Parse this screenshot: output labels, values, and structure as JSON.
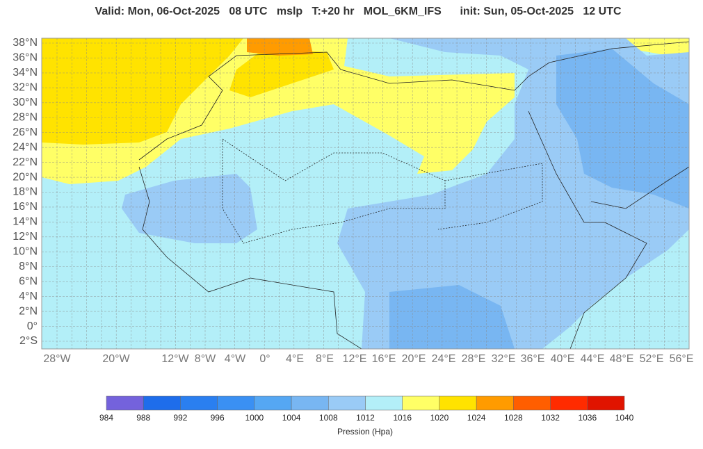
{
  "title": "Valid: Mon, 06-Oct-2025   08 UTC   mslp   T:+20 hr   MOL_6KM_IFS      init: Sun, 05-Oct-2025   12 UTC",
  "lat_labels": [
    "38°N",
    "36°N",
    "34°N",
    "32°N",
    "30°N",
    "28°N",
    "26°N",
    "24°N",
    "22°N",
    "20°N",
    "18°N",
    "16°N",
    "14°N",
    "12°N",
    "10°N",
    "8°N",
    "6°N",
    "4°N",
    "2°N",
    "0°",
    "2°S"
  ],
  "lon_labels": [
    "28°W",
    "20°W",
    "12°W",
    "8°W",
    "4°W",
    "0°",
    "4°E",
    "8°E",
    "12°E",
    "16°E",
    "20°E",
    "24°E",
    "28°E",
    "32°E",
    "36°E",
    "40°E",
    "44°E",
    "48°E",
    "52°E",
    "56°E"
  ],
  "colorbar": {
    "ticks": [
      984,
      988,
      992,
      996,
      1000,
      1004,
      1008,
      1012,
      1016,
      1020,
      1024,
      1028,
      1032,
      1036,
      1040
    ],
    "colors": [
      "#7462dc",
      "#1e6deb",
      "#2a7ff0",
      "#3a90f3",
      "#55a7f3",
      "#78b6f2",
      "#9acbf6",
      "#b3eff8",
      "#ffff66",
      "#ffe300",
      "#ff9b00",
      "#ff5e00",
      "#ff2b00",
      "#e01400"
    ],
    "label": "Pression (Hpa)"
  }
}
